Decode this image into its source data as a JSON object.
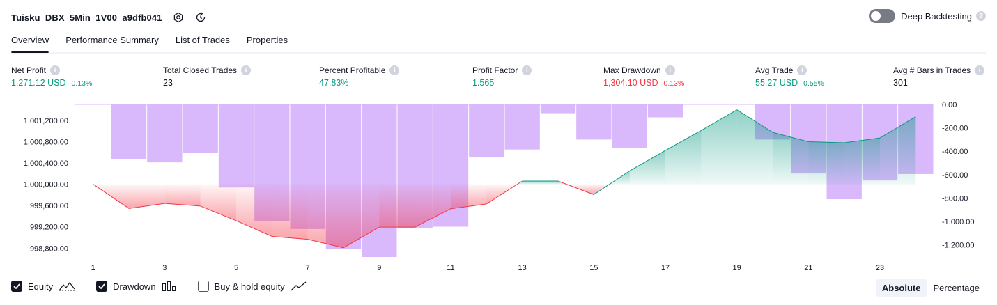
{
  "header": {
    "strategy_name": "Tuisku_DBX_5Min_1V00_a9dfb041",
    "settings_icon": "gear-icon",
    "reload_icon": "refresh-icon",
    "deep_backtesting_label": "Deep Backtesting",
    "deep_backtesting_enabled": false
  },
  "tabs": [
    {
      "label": "Overview",
      "active": true
    },
    {
      "label": "Performance Summary",
      "active": false
    },
    {
      "label": "List of Trades",
      "active": false
    },
    {
      "label": "Properties",
      "active": false
    }
  ],
  "metrics": [
    {
      "label": "Net Profit",
      "value": "1,271.12 USD",
      "pct": "0.13%",
      "color": "#089981"
    },
    {
      "label": "Total Closed Trades",
      "value": "23",
      "pct": "",
      "color": "#131722"
    },
    {
      "label": "Percent Profitable",
      "value": "47.83%",
      "pct": "",
      "color": "#089981"
    },
    {
      "label": "Profit Factor",
      "value": "1.565",
      "pct": "",
      "color": "#089981"
    },
    {
      "label": "Max Drawdown",
      "value": "1,304.10 USD",
      "pct": "0.13%",
      "color": "#f23645"
    },
    {
      "label": "Avg Trade",
      "value": "55.27 USD",
      "pct": "0.55%",
      "color": "#089981"
    },
    {
      "label": "Avg # Bars in Trades",
      "value": "301",
      "pct": "",
      "color": "#131722"
    }
  ],
  "chart_data": {
    "type": "line",
    "x": [
      1,
      2,
      3,
      4,
      5,
      6,
      7,
      8,
      9,
      10,
      11,
      12,
      13,
      14,
      15,
      16,
      17,
      18,
      19,
      20,
      21,
      22,
      23,
      24
    ],
    "x_tick_labels": [
      "1",
      "3",
      "5",
      "7",
      "9",
      "11",
      "13",
      "15",
      "17",
      "19",
      "21",
      "23"
    ],
    "baseline": 1000000,
    "left_axis": {
      "ylim": [
        998620,
        1001500
      ],
      "ticks": [
        "1,001,200.00",
        "1,000,800.00",
        "1,000,400.00",
        "1,000,000.00",
        "999,600.00",
        "999,200.00",
        "998,800.00"
      ],
      "tick_values": [
        1001200,
        1000800,
        1000400,
        1000000,
        999600,
        999200,
        998800
      ]
    },
    "right_axis": {
      "ylim": [
        -1310,
        0
      ],
      "ticks": [
        "0.00",
        "-200.00",
        "-400.00",
        "-600.00",
        "-800.00",
        "-1,000.00",
        "-1,200.00"
      ],
      "tick_values": [
        0,
        -200,
        -400,
        -600,
        -800,
        -1000,
        -1200
      ]
    },
    "series": [
      {
        "name": "Equity",
        "axis": "left",
        "values": [
          1000000,
          999545,
          999640,
          999590,
          999315,
          999020,
          998965,
          998805,
          999195,
          999195,
          999540,
          999630,
          1000060,
          1000060,
          999805,
          1000250,
          1000635,
          1001010,
          1001400,
          1000975,
          1000800,
          1000780,
          1000870,
          1001270
        ],
        "color_up": "#089981",
        "color_down": "#f23645"
      },
      {
        "name": "Drawdown",
        "axis": "right",
        "type": "bar",
        "values": [
          0,
          -465,
          -495,
          -415,
          -710,
          -1000,
          -1065,
          -1235,
          -1304,
          -1060,
          -1045,
          -450,
          -385,
          -75,
          -300,
          -375,
          -110,
          0,
          0,
          -300,
          -590,
          -810,
          -650,
          -595
        ],
        "color": "#d9b8fc"
      }
    ]
  },
  "legend": {
    "equity": {
      "label": "Equity",
      "checked": true,
      "icon": "equity-line-icon"
    },
    "drawdown": {
      "label": "Drawdown",
      "checked": true,
      "icon": "drawdown-bars-icon"
    },
    "buy_hold": {
      "label": "Buy & hold equity",
      "checked": false,
      "icon": "buy-hold-line-icon"
    }
  },
  "modes": [
    {
      "label": "Absolute",
      "active": true
    },
    {
      "label": "Percentage",
      "active": false
    }
  ]
}
